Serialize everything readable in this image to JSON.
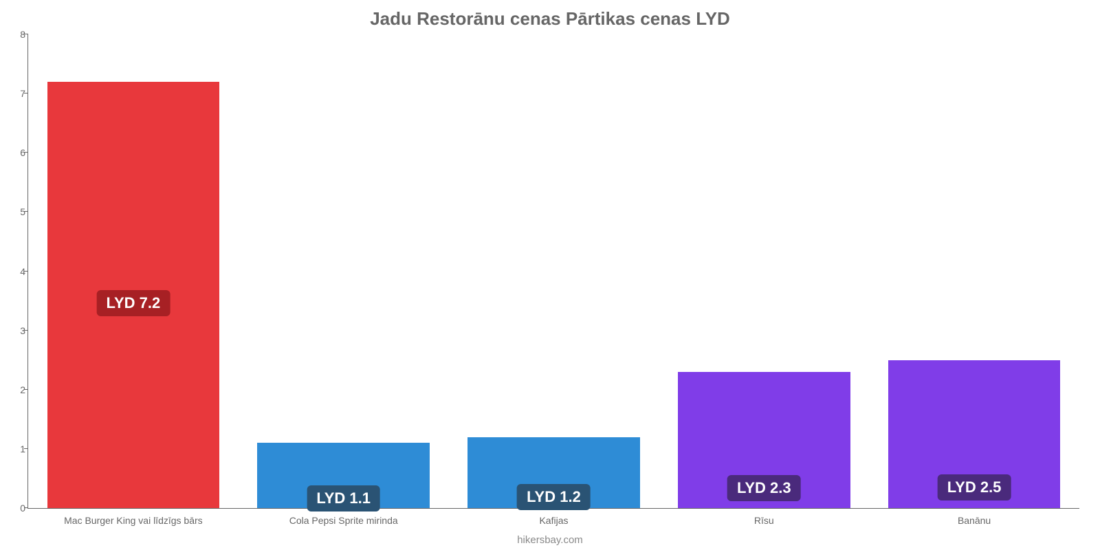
{
  "chart": {
    "type": "bar",
    "title": "Jadu Restorānu cenas Pārtikas cenas LYD",
    "title_color": "#666666",
    "title_fontsize": 26,
    "attribution": "hikersbay.com",
    "attribution_color": "#888888",
    "attribution_fontsize": 15,
    "background_color": "#ffffff",
    "axis_color": "#666666",
    "tick_fontsize": 14,
    "tick_color": "#666666",
    "ylim_min": 0,
    "ylim_max": 8,
    "yticks": [
      0,
      1,
      2,
      3,
      4,
      5,
      6,
      7,
      8
    ],
    "bar_width_pct": 82,
    "value_label_fontsize": 22,
    "categories": [
      {
        "label": "Mac Burger King vai līdzīgs bārs",
        "value": 7.2,
        "value_label": "LYD 7.2",
        "bar_color": "#e8383c",
        "badge_bg": "#a72024",
        "label_bottom_pct": 45
      },
      {
        "label": "Cola Pepsi Sprite mirinda",
        "value": 1.1,
        "value_label": "LYD 1.1",
        "bar_color": "#2e8cd6",
        "badge_bg": "#2a5374",
        "label_bottom_pct": -5
      },
      {
        "label": "Kafijas",
        "value": 1.2,
        "value_label": "LYD 1.2",
        "bar_color": "#2e8cd6",
        "badge_bg": "#2a5374",
        "label_bottom_pct": -3
      },
      {
        "label": "Rīsu",
        "value": 2.3,
        "value_label": "LYD 2.3",
        "bar_color": "#803de8",
        "badge_bg": "#4a2a7c",
        "label_bottom_pct": 5
      },
      {
        "label": "Banānu",
        "value": 2.5,
        "value_label": "LYD 2.5",
        "bar_color": "#803de8",
        "badge_bg": "#4a2a7c",
        "label_bottom_pct": 5
      }
    ]
  }
}
